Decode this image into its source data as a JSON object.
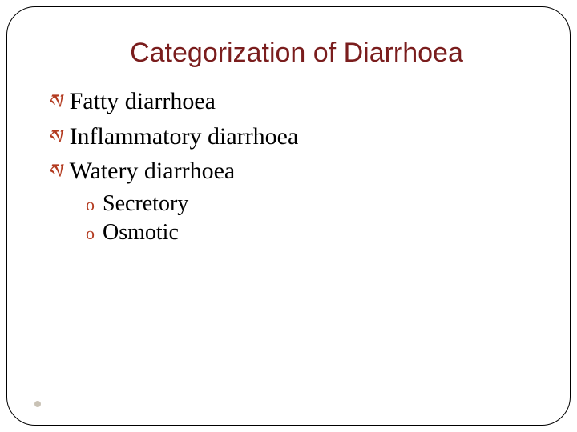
{
  "slide": {
    "title": "Categorization of Diarrhoea",
    "title_color": "#7a1d1d",
    "title_fontsize": 34,
    "bullets": [
      {
        "text": "Fatty diarrhoea"
      },
      {
        "text": "Inflammatory diarrhoea"
      },
      {
        "text": "Watery diarrhoea"
      }
    ],
    "bullet_text_color": "#000000",
    "bullet_text_fontsize": 30,
    "bullet_icon_glyph": "ས",
    "bullet_icon_color": "#b33a1f",
    "bullet_icon_fontsize": 26,
    "sub_bullets": [
      {
        "text": "Secretory"
      },
      {
        "text": "Osmotic"
      }
    ],
    "sub_text_color": "#000000",
    "sub_text_fontsize": 28,
    "sub_icon_glyph": "o",
    "sub_icon_color": "#b33a1f",
    "sub_icon_fontsize": 22,
    "frame_border_color": "#000000",
    "frame_border_radius": 36,
    "background_color": "#ffffff",
    "footer_dot_color": "#c9c2b5"
  }
}
